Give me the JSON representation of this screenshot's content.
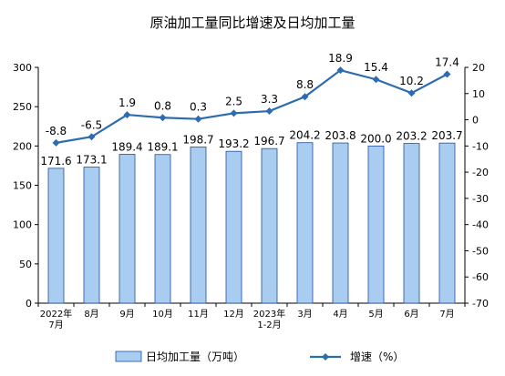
{
  "chart_data": {
    "type": "bar+line",
    "title": "原油加工量同比增速及日均加工量",
    "categories": [
      [
        "2022年",
        "7月"
      ],
      [
        "8月"
      ],
      [
        "9月"
      ],
      [
        "10月"
      ],
      [
        "11月"
      ],
      [
        "12月"
      ],
      [
        "2023年",
        "1-2月"
      ],
      [
        "3月"
      ],
      [
        "4月"
      ],
      [
        "5月"
      ],
      [
        "6月"
      ],
      [
        "7月"
      ]
    ],
    "series": [
      {
        "name": "日均加工量（万吨）",
        "kind": "bar",
        "axis": "left",
        "values": [
          171.6,
          173.1,
          189.4,
          189.1,
          198.7,
          193.2,
          196.7,
          204.2,
          203.8,
          200.0,
          203.2,
          203.7
        ],
        "labels": [
          "171.6",
          "173.1",
          "189.4",
          "189.1",
          "198.7",
          "193.2",
          "196.7",
          "204.2",
          "203.8",
          "200.0",
          "203.2",
          "203.7"
        ]
      },
      {
        "name": "增速（%）",
        "kind": "line",
        "axis": "right",
        "values": [
          -8.8,
          -6.5,
          1.9,
          0.8,
          0.3,
          2.5,
          3.3,
          8.8,
          18.9,
          15.4,
          10.2,
          17.4
        ],
        "labels": [
          "-8.8",
          "-6.5",
          "1.9",
          "0.8",
          "0.3",
          "2.5",
          "3.3",
          "8.8",
          "18.9",
          "15.4",
          "10.2",
          "17.4"
        ]
      }
    ],
    "y_left": {
      "min": 0,
      "max": 300,
      "step": 50
    },
    "y_right": {
      "min": -70,
      "max": 20,
      "step": 10
    },
    "legend_position": "bottom",
    "colors": {
      "bar_fill": "#a9cdf0",
      "bar_stroke": "#1f4e9c",
      "line": "#2e6cb0",
      "axis": "#000000"
    }
  }
}
